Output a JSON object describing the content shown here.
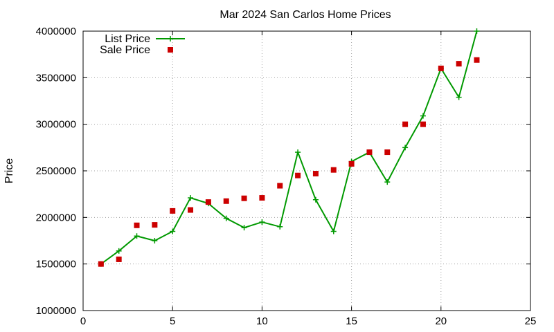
{
  "chart_data": {
    "type": "line",
    "title": "Mar 2024 San Carlos Home Prices",
    "xlabel": "",
    "ylabel": "Price",
    "xlim": [
      0,
      25
    ],
    "ylim": [
      1000000,
      4000000
    ],
    "x_ticks": [
      "0",
      "5",
      "10",
      "15",
      "20",
      "25"
    ],
    "y_ticks": [
      "1000000",
      "1500000",
      "2000000",
      "2500000",
      "3000000",
      "3500000",
      "4000000"
    ],
    "grid": true,
    "legend_position": "top-left",
    "series": [
      {
        "name": "List Price",
        "style": "linespoints",
        "marker": "plus",
        "color": "#009900",
        "x": [
          1,
          2,
          3,
          4,
          5,
          6,
          7,
          8,
          9,
          10,
          11,
          12,
          13,
          14,
          15,
          16,
          17,
          18,
          19,
          20,
          21,
          22
        ],
        "values": [
          1500000,
          1640000,
          1800000,
          1750000,
          1850000,
          2210000,
          2150000,
          1990000,
          1890000,
          1950000,
          1900000,
          2700000,
          2190000,
          1850000,
          2600000,
          2700000,
          2380000,
          2750000,
          3090000,
          3600000,
          3290000,
          4000000
        ]
      },
      {
        "name": "Sale Price",
        "style": "points",
        "marker": "square",
        "color": "#cc0000",
        "x": [
          1,
          2,
          3,
          4,
          5,
          6,
          7,
          8,
          9,
          10,
          11,
          12,
          13,
          14,
          15,
          16,
          17,
          18,
          19,
          20,
          21,
          22
        ],
        "values": [
          1500000,
          1550000,
          1915000,
          1920000,
          2070000,
          2080000,
          2165000,
          2175000,
          2205000,
          2210000,
          2340000,
          2450000,
          2470000,
          2510000,
          2575000,
          2700000,
          2700000,
          3000000,
          3000000,
          3600000,
          3650000,
          3690000
        ]
      }
    ]
  }
}
